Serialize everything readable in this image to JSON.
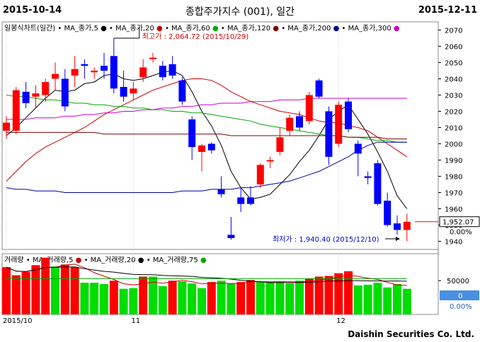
{
  "header": {
    "start_date": "2015-10-14",
    "title": "종합주가지수 (001), 일간",
    "end_date": "2015-12-11"
  },
  "footer": {
    "company": "Daishin Securities Co. Ltd."
  },
  "price_legend": {
    "prefix": "일봉식차트(일간)",
    "items": [
      {
        "label": "MA_종가,5",
        "color": "#000000"
      },
      {
        "label": "MA_종가,20",
        "color": "#cc0000"
      },
      {
        "label": "MA_종가,60",
        "color": "#00aa00"
      },
      {
        "label": "MA_종가,120",
        "color": "#800000"
      },
      {
        "label": "MA_종가,200",
        "color": "#0000aa"
      },
      {
        "label": "MA_종가,300",
        "color": "#cc00cc"
      }
    ]
  },
  "volume_legend": {
    "prefix": "거래량",
    "items": [
      {
        "label": "MA_거래량,5",
        "color": "#cc0000"
      },
      {
        "label": "MA_거래량,20",
        "color": "#000000"
      },
      {
        "label": "MA_거래량,75",
        "color": "#00aa00"
      }
    ]
  },
  "annotations": {
    "high": "최고가 : 2,064.72 (2015/10/29)",
    "low": "최저가 : 1,940.40 (2015/12/10)"
  },
  "right_panel": {
    "last_price": "1,952.07",
    "change_pct": "0.00%",
    "vol_value": "0",
    "vol_change": "0.00%"
  },
  "colors": {
    "up": "#ff0000",
    "down": "#0000ff",
    "vol_up": "#ff0000",
    "vol_down": "#00dd00",
    "badge": "#4a90e2"
  },
  "chart_data": [
    {
      "type": "candlestick",
      "title": "종합주가지수 (001), 일간",
      "ylim": [
        1935,
        2075
      ],
      "yticks": [
        1940,
        1950,
        1960,
        1970,
        1980,
        1990,
        2000,
        2010,
        2020,
        2030,
        2040,
        2050,
        2060,
        2070
      ],
      "x_labels": [
        {
          "label": "2015/10",
          "index": 0
        },
        {
          "label": "11",
          "index": 13
        },
        {
          "label": "12",
          "index": 34
        }
      ],
      "candles": [
        {
          "o": 2008,
          "h": 2017,
          "l": 2003,
          "c": 2013
        },
        {
          "o": 2008,
          "h": 2035,
          "l": 2006,
          "c": 2033
        },
        {
          "o": 2032,
          "h": 2038,
          "l": 2022,
          "c": 2025
        },
        {
          "o": 2029,
          "h": 2036,
          "l": 2022,
          "c": 2031
        },
        {
          "o": 2030,
          "h": 2040,
          "l": 2026,
          "c": 2038
        },
        {
          "o": 2040,
          "h": 2050,
          "l": 2033,
          "c": 2043
        },
        {
          "o": 2040,
          "h": 2046,
          "l": 2020,
          "c": 2023
        },
        {
          "o": 2042,
          "h": 2054,
          "l": 2035,
          "c": 2046
        },
        {
          "o": 2049,
          "h": 2052,
          "l": 2040,
          "c": 2048
        },
        {
          "o": 2044,
          "h": 2047,
          "l": 2040,
          "c": 2045
        },
        {
          "o": 2048,
          "h": 2056,
          "l": 2040,
          "c": 2045
        },
        {
          "o": 2054,
          "h": 2065,
          "l": 2031,
          "c": 2034
        },
        {
          "o": 2035,
          "h": 2045,
          "l": 2026,
          "c": 2029
        },
        {
          "o": 2031,
          "h": 2038,
          "l": 2027,
          "c": 2034
        },
        {
          "o": 2041,
          "h": 2052,
          "l": 2038,
          "c": 2047
        },
        {
          "o": 2053,
          "h": 2056,
          "l": 2050,
          "c": 2053
        },
        {
          "o": 2048,
          "h": 2051,
          "l": 2039,
          "c": 2041
        },
        {
          "o": 2049,
          "h": 2054,
          "l": 2040,
          "c": 2042
        },
        {
          "o": 2039,
          "h": 2041,
          "l": 2024,
          "c": 2026
        },
        {
          "o": 2015,
          "h": 2017,
          "l": 1990,
          "c": 1998
        },
        {
          "o": 1995,
          "h": 2000,
          "l": 1983,
          "c": 1999
        },
        {
          "o": 2000,
          "h": 2001,
          "l": 1994,
          "c": 1996
        },
        {
          "o": 1972,
          "h": 1980,
          "l": 1967,
          "c": 1969
        },
        {
          "o": 1944,
          "h": 1955,
          "l": 1941,
          "c": 1942
        },
        {
          "o": 1967,
          "h": 1973,
          "l": 1958,
          "c": 1963
        },
        {
          "o": 1967,
          "h": 1974,
          "l": 1962,
          "c": 1963
        },
        {
          "o": 1975,
          "h": 1988,
          "l": 1973,
          "c": 1987
        },
        {
          "o": 1990,
          "h": 1992,
          "l": 1985,
          "c": 1990
        },
        {
          "o": 1995,
          "h": 2010,
          "l": 1993,
          "c": 2004
        },
        {
          "o": 2008,
          "h": 2018,
          "l": 2005,
          "c": 2016
        },
        {
          "o": 2017,
          "h": 2020,
          "l": 2008,
          "c": 2010
        },
        {
          "o": 2014,
          "h": 2032,
          "l": 2012,
          "c": 2030
        },
        {
          "o": 2039,
          "h": 2040,
          "l": 2028,
          "c": 2029
        },
        {
          "o": 2020,
          "h": 2023,
          "l": 1987,
          "c": 1992
        },
        {
          "o": 2000,
          "h": 2026,
          "l": 1998,
          "c": 2024
        },
        {
          "o": 2026,
          "h": 2028,
          "l": 2007,
          "c": 2009
        },
        {
          "o": 2000,
          "h": 2002,
          "l": 1980,
          "c": 1994
        },
        {
          "o": 1980,
          "h": 1983,
          "l": 1975,
          "c": 1979
        },
        {
          "o": 1988,
          "h": 1990,
          "l": 1962,
          "c": 1963
        },
        {
          "o": 1965,
          "h": 1970,
          "l": 1949,
          "c": 1950
        },
        {
          "o": 1951,
          "h": 1956,
          "l": 1944,
          "c": 1947
        },
        {
          "o": 1947,
          "h": 1957,
          "l": 1940,
          "c": 1952
        }
      ],
      "ma_lines": [
        {
          "name": "MA_종가,5",
          "color": "#000000",
          "values": [
            2005,
            2010,
            2016,
            2022,
            2028,
            2033,
            2032,
            2033,
            2037,
            2038,
            2042,
            2043,
            2040,
            2039,
            2040,
            2042,
            2044,
            2045,
            2042,
            2032,
            2020,
            2011,
            1999,
            1983,
            1973,
            1966,
            1967,
            1969,
            1975,
            1981,
            1989,
            1996,
            2005,
            2015,
            2020,
            2024,
            2015,
            2006,
            1995,
            1983,
            1968,
            1960
          ]
        },
        {
          "name": "MA_종가,20",
          "color": "#cc0000",
          "values": [
            1977,
            1983,
            1989,
            1994,
            1998,
            2001,
            2004,
            2007,
            2010,
            2014,
            2018,
            2021,
            2024,
            2027,
            2030,
            2033,
            2035,
            2037,
            2039,
            2040,
            2040,
            2039,
            2036,
            2032,
            2029,
            2026,
            2024,
            2022,
            2020,
            2019,
            2018,
            2016,
            2014,
            2013,
            2013,
            2011,
            2010,
            2008,
            2004,
            2000,
            1996,
            1992
          ]
        },
        {
          "name": "MA_종가,60",
          "color": "#00aa00",
          "values": [
            2030,
            2029,
            2029,
            2028,
            2027,
            2027,
            2026,
            2025,
            2025,
            2024,
            2024,
            2023,
            2023,
            2022,
            2022,
            2021,
            2021,
            2020,
            2020,
            2019,
            2019,
            2018,
            2017,
            2016,
            2015,
            2014,
            2012,
            2011,
            2010,
            2009,
            2008,
            2007,
            2006,
            2005,
            2005,
            2004,
            2004,
            2003,
            2002,
            2002,
            2001,
            2001
          ]
        },
        {
          "name": "MA_종가,120",
          "color": "#800000",
          "values": [
            2007,
            2007,
            2007,
            2007,
            2007,
            2007,
            2007,
            2007,
            2007,
            2007,
            2006,
            2006,
            2006,
            2006,
            2006,
            2006,
            2006,
            2006,
            2006,
            2006,
            2006,
            2006,
            2006,
            2005,
            2005,
            2005,
            2005,
            2005,
            2005,
            2005,
            2005,
            2005,
            2005,
            2005,
            2005,
            2004,
            2004,
            2004,
            2004,
            2003,
            2003,
            2003
          ]
        },
        {
          "name": "MA_종가,200",
          "color": "#0000aa",
          "values": [
            1973,
            1972,
            1972,
            1971,
            1971,
            1971,
            1970,
            1970,
            1970,
            1970,
            1970,
            1970,
            1970,
            1970,
            1970,
            1970,
            1970,
            1970,
            1971,
            1971,
            1971,
            1972,
            1972,
            1972,
            1973,
            1973,
            1974,
            1975,
            1976,
            1977,
            1979,
            1981,
            1983,
            1986,
            1989,
            1992,
            1996,
            1999,
            2001,
            2001,
            2001,
            2001
          ]
        },
        {
          "name": "MA_종가,300",
          "color": "#cc00cc",
          "values": [
            2015,
            2015,
            2015,
            2016,
            2016,
            2016,
            2017,
            2017,
            2018,
            2018,
            2019,
            2019,
            2020,
            2020,
            2021,
            2021,
            2022,
            2022,
            2023,
            2023,
            2024,
            2024,
            2025,
            2025,
            2025,
            2026,
            2026,
            2026,
            2027,
            2027,
            2027,
            2028,
            2028,
            2028,
            2028,
            2028,
            2028,
            2028,
            2028,
            2028,
            2028,
            2028
          ]
        }
      ]
    },
    {
      "type": "bar",
      "title": "거래량",
      "ylim": [
        0,
        90000
      ],
      "yticks": [
        50000
      ],
      "volumes": [
        {
          "v": 70000,
          "up": true
        },
        {
          "v": 58000,
          "up": true
        },
        {
          "v": 63000,
          "up": true
        },
        {
          "v": 73000,
          "up": true
        },
        {
          "v": 84000,
          "up": true
        },
        {
          "v": 71000,
          "up": false
        },
        {
          "v": 74000,
          "up": true
        },
        {
          "v": 70000,
          "up": true
        },
        {
          "v": 47000,
          "up": false
        },
        {
          "v": 47000,
          "up": false
        },
        {
          "v": 45000,
          "up": false
        },
        {
          "v": 50000,
          "up": true
        },
        {
          "v": 38000,
          "up": false
        },
        {
          "v": 39000,
          "up": false
        },
        {
          "v": 56000,
          "up": true
        },
        {
          "v": 56000,
          "up": false
        },
        {
          "v": 42000,
          "up": false
        },
        {
          "v": 50000,
          "up": true
        },
        {
          "v": 49000,
          "up": false
        },
        {
          "v": 46000,
          "up": false
        },
        {
          "v": 39000,
          "up": false
        },
        {
          "v": 48000,
          "up": true
        },
        {
          "v": 50000,
          "up": false
        },
        {
          "v": 46000,
          "up": false
        },
        {
          "v": 48000,
          "up": true
        },
        {
          "v": 51000,
          "up": true
        },
        {
          "v": 48000,
          "up": false
        },
        {
          "v": 48000,
          "up": false
        },
        {
          "v": 48000,
          "up": false
        },
        {
          "v": 46000,
          "up": false
        },
        {
          "v": 50000,
          "up": false
        },
        {
          "v": 53000,
          "up": true
        },
        {
          "v": 56000,
          "up": true
        },
        {
          "v": 57000,
          "up": true
        },
        {
          "v": 61000,
          "up": true
        },
        {
          "v": 64000,
          "up": true
        },
        {
          "v": 43000,
          "up": false
        },
        {
          "v": 44000,
          "up": false
        },
        {
          "v": 47000,
          "up": false
        },
        {
          "v": 40000,
          "up": false
        },
        {
          "v": 45000,
          "up": false
        },
        {
          "v": 38000,
          "up": false
        }
      ]
    }
  ]
}
